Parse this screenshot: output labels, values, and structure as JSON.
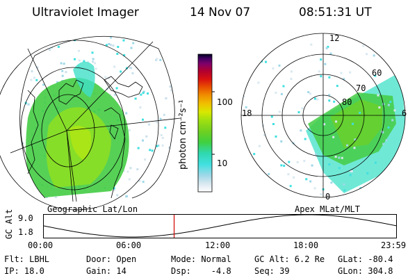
{
  "header": {
    "instrument": "Ultraviolet Imager",
    "date": "14 Nov 07",
    "time": "08:51:31 UT"
  },
  "geo_map": {
    "label": "Geographic Lat/Lon"
  },
  "colorbar": {
    "unit_label": "photon cm⁻²s⁻¹",
    "ticks": [
      {
        "value": "100",
        "level": 100
      },
      {
        "value": "10",
        "level": 10
      }
    ],
    "range_log": [
      0.4,
      2.6
    ],
    "colors": [
      "#ffffff",
      "#d8e8f0",
      "#9fd8e8",
      "#40e0e0",
      "#30d8b0",
      "#40d040",
      "#70d020",
      "#a0e010",
      "#d8e800",
      "#f0c000",
      "#f09000",
      "#e85000",
      "#d81010",
      "#b00030",
      "#80006a",
      "#400060",
      "#000020"
    ]
  },
  "polar_map": {
    "label": "Apex MLat/MLT",
    "mlt_labels": {
      "top": "12",
      "left": "18",
      "right": "6",
      "bottom": "0"
    },
    "lat_labels": [
      "60",
      "70",
      "80"
    ]
  },
  "altitude_plot": {
    "ylabel": "GC Alt",
    "yticks": [
      "9.0",
      "1.8"
    ],
    "xticks": [
      "00:00",
      "06:00",
      "12:00",
      "18:00",
      "23:59"
    ],
    "current_hour": 8.86,
    "marker_color": "#d00000"
  },
  "info": {
    "row1": {
      "flt": "Flt: LBHL",
      "door": "Door: Open",
      "mode": "Mode: Normal",
      "gcalt": "GC Alt: 6.2 Re",
      "glat": "GLat: -80.4"
    },
    "row2": {
      "ip": "IP: 18.0",
      "gain": "Gain: 14",
      "dsp": "Dsp:    -4.8",
      "seq": "Seq: 39",
      "glon": "GLon: 304.8"
    }
  }
}
